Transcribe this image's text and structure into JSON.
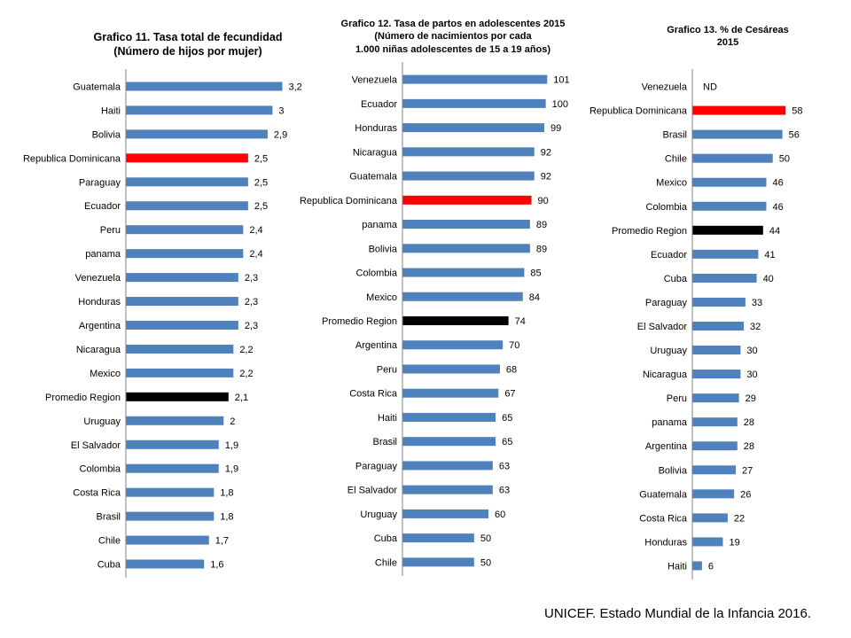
{
  "colors": {
    "default_bar": "#4F81BD",
    "highlight_bar": "#FF0000",
    "average_bar": "#000000",
    "axis": "#808080"
  },
  "chart_data": [
    {
      "type": "bar",
      "orientation": "horizontal",
      "title_lines": [
        "Grafico 11. Tasa total de fecundidad",
        "(Número de hijos por mujer)"
      ],
      "categories": [
        "Guatemala",
        "Haiti",
        "Bolivia",
        "Republica Dominicana",
        "Paraguay",
        "Ecuador",
        "Peru",
        "panama",
        "Venezuela",
        "Honduras",
        "Argentina",
        "Nicaragua",
        "Mexico",
        "Promedio Region",
        "Uruguay",
        "El Salvador",
        "Colombia",
        "Costa Rica",
        "Brasil",
        "Chile",
        "Cuba"
      ],
      "values": [
        3.2,
        3,
        2.9,
        2.5,
        2.5,
        2.5,
        2.4,
        2.4,
        2.3,
        2.3,
        2.3,
        2.2,
        2.2,
        2.1,
        2,
        1.9,
        1.9,
        1.8,
        1.8,
        1.7,
        1.6
      ],
      "value_labels": [
        "3,2",
        "3",
        "2,9",
        "2,5",
        "2,5",
        "2,5",
        "2,4",
        "2,4",
        "2,3",
        "2,3",
        "2,3",
        "2,2",
        "2,2",
        "2,1",
        "2",
        "1,9",
        "1,9",
        "1,8",
        "1,8",
        "1,7",
        "1,6"
      ],
      "highlight": [
        "Republica Dominicana"
      ],
      "average": [
        "Promedio Region"
      ],
      "xlim": [
        0,
        3.5
      ],
      "grid": false
    },
    {
      "type": "bar",
      "orientation": "horizontal",
      "title_lines": [
        "Grafico 12. Tasa de partos en adolescentes 2015",
        "(Número de nacimientos por cada",
        "1.000 niñas adolescentes de 15 a 19 años)"
      ],
      "categories": [
        "Venezuela",
        "Ecuador",
        "Honduras",
        "Nicaragua",
        "Guatemala",
        "Republica Dominicana",
        "panama",
        "Bolivia",
        "Colombia",
        "Mexico",
        "Promedio Region",
        "Argentina",
        "Peru",
        "Costa Rica",
        "Haiti",
        "Brasil",
        "Paraguay",
        "El Salvador",
        "Uruguay",
        "Cuba",
        "Chile"
      ],
      "values": [
        101,
        100,
        99,
        92,
        92,
        90,
        89,
        89,
        85,
        84,
        74,
        70,
        68,
        67,
        65,
        65,
        63,
        63,
        60,
        50,
        50
      ],
      "value_labels": [
        "101",
        "100",
        "99",
        "92",
        "92",
        "90",
        "89",
        "89",
        "85",
        "84",
        "74",
        "70",
        "68",
        "67",
        "65",
        "65",
        "63",
        "63",
        "60",
        "50",
        "50"
      ],
      "highlight": [
        "Republica Dominicana"
      ],
      "average": [
        "Promedio Region"
      ],
      "xlim": [
        0,
        120
      ],
      "grid": false
    },
    {
      "type": "bar",
      "orientation": "horizontal",
      "title_lines": [
        "Grafico 13. % de Cesáreas",
        "2015"
      ],
      "categories": [
        "Venezuela",
        "Republica Dominicana",
        "Brasil",
        "Chile",
        "Mexico",
        "Colombia",
        "Promedio Region",
        "Ecuador",
        "Cuba",
        "Paraguay",
        "El Salvador",
        "Uruguay",
        "Nicaragua",
        "Peru",
        "panama",
        "Argentina",
        "Bolivia",
        "Guatemala",
        "Costa Rica",
        "Honduras",
        "Haiti"
      ],
      "values": [
        null,
        58,
        56,
        50,
        46,
        46,
        44,
        41,
        40,
        33,
        32,
        30,
        30,
        29,
        28,
        28,
        27,
        26,
        22,
        19,
        6
      ],
      "value_labels": [
        "ND",
        "58",
        "56",
        "50",
        "46",
        "46",
        "44",
        "41",
        "40",
        "33",
        "32",
        "30",
        "30",
        "29",
        "28",
        "28",
        "27",
        "26",
        "22",
        "19",
        "6"
      ],
      "highlight": [
        "Republica Dominicana"
      ],
      "average": [
        "Promedio Region"
      ],
      "xlim": [
        0,
        70
      ],
      "grid": false
    }
  ],
  "footer": "UNICEF. Estado Mundial de la Infancia 2016."
}
